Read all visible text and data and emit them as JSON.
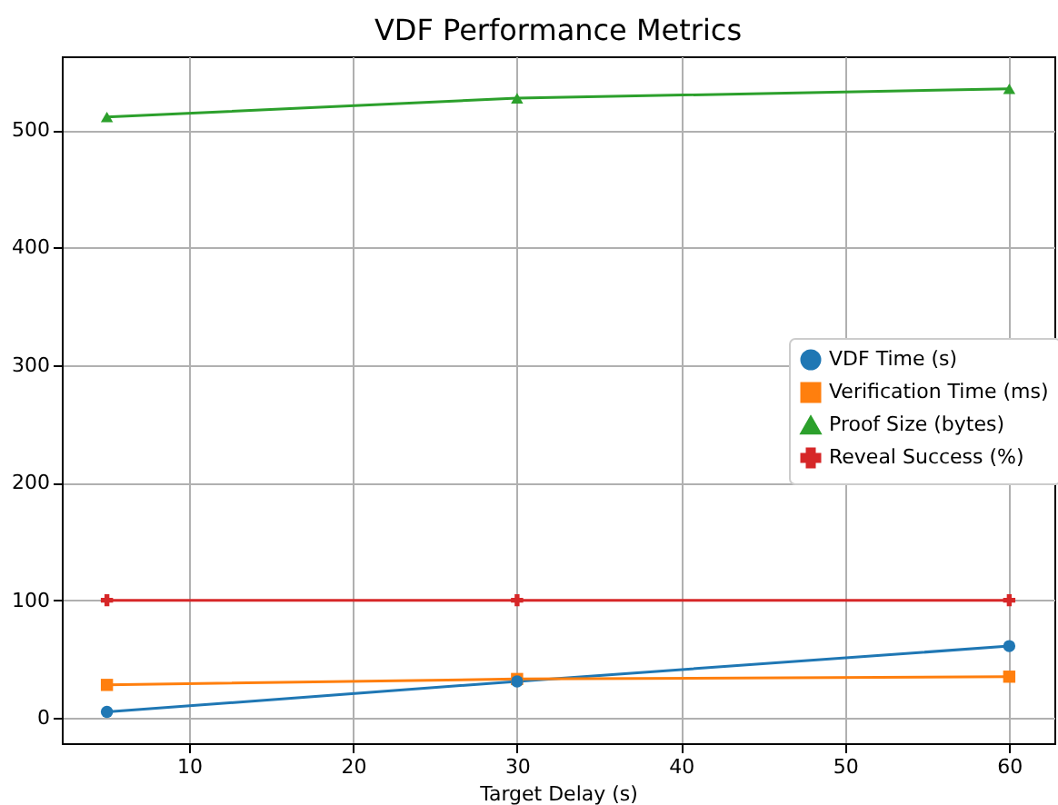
{
  "chart_data": {
    "type": "line",
    "title": "VDF Performance Metrics",
    "xlabel": "Target Delay (s)",
    "x": [
      5,
      30,
      60
    ],
    "series": [
      {
        "name": "VDF Time (s)",
        "color": "#1f77b4",
        "marker": "circle",
        "values": [
          5,
          31,
          61
        ]
      },
      {
        "name": "Verification Time (ms)",
        "color": "#ff7f0e",
        "marker": "square",
        "values": [
          28,
          33,
          35
        ]
      },
      {
        "name": "Proof Size (bytes)",
        "color": "#2ca02c",
        "marker": "triangle",
        "values": [
          511,
          527,
          535
        ]
      },
      {
        "name": "Reveal Success (%)",
        "color": "#d62728",
        "marker": "cross",
        "values": [
          100,
          100,
          100
        ]
      }
    ],
    "xlim": [
      2.25,
      62.75
    ],
    "xticks": [
      10,
      20,
      30,
      40,
      50,
      60
    ],
    "ylim": [
      -21.6,
      562.6
    ],
    "yticks": [
      0,
      100,
      200,
      300,
      400,
      500
    ],
    "grid": true,
    "legend": "right"
  }
}
